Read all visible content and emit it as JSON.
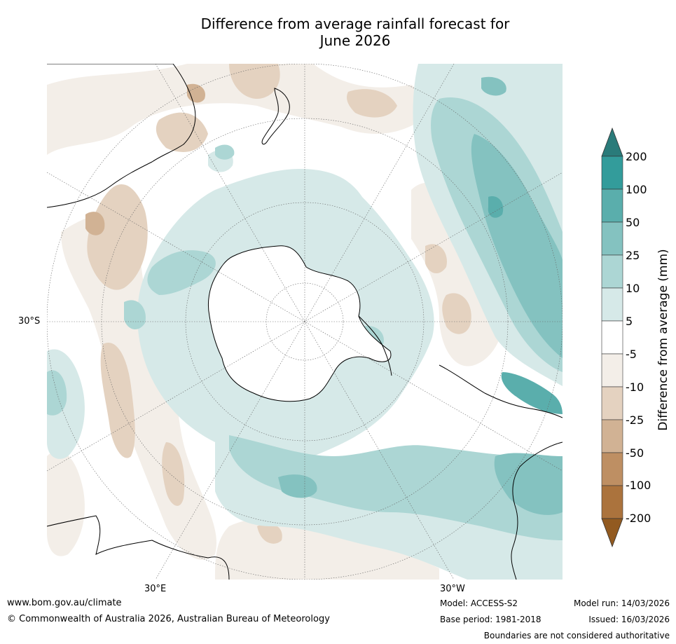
{
  "title_line1": "Difference from average rainfall forecast for",
  "title_line2": "June 2026",
  "labels": {
    "lat": "30°S",
    "lon_left": "30°E",
    "lon_right": "30°W"
  },
  "legend": {
    "title": "Difference from average (mm)",
    "ticks": [
      "200",
      "100",
      "50",
      "25",
      "10",
      "5",
      "-5",
      "-10",
      "-25",
      "-50",
      "-100",
      "-200"
    ],
    "colors": {
      "gt200": "#2a7b7a",
      "100_200": "#339c9b",
      "50_100": "#5aaeac",
      "25_50": "#84c2c0",
      "10_25": "#acd6d4",
      "5_10": "#d6e9e8",
      "neutral": "#ffffff",
      "m5_m10": "#f3eee8",
      "m10_m25": "#e4d2c0",
      "m25_m50": "#d1b294",
      "m50_m100": "#be8f63",
      "m100_m200": "#ab733d",
      "lt_m200": "#925a20"
    }
  },
  "footer": {
    "website": "www.bom.gov.au/climate",
    "copyright": "© Commonwealth of Australia 2026, Australian Bureau of Meteorology",
    "model": "Model: ACCESS-S2",
    "base_period": "Base period: 1981-2018",
    "model_run": "Model run: 14/03/2026",
    "issued": "Issued: 16/03/2026",
    "disclaimer": "Boundaries are not considered authoritative"
  }
}
